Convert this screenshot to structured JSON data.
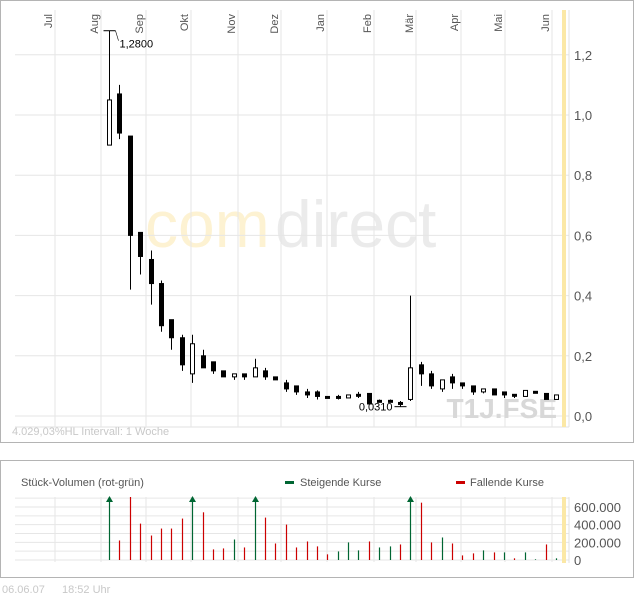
{
  "chart_data": [
    {
      "type": "candlestick",
      "ticker_watermark": "T1J.FSE",
      "logo_watermark": {
        "part1": "com",
        "part2": "direct"
      },
      "x_tick_labels": [
        "Jul",
        "Aug",
        "Sep",
        "Okt",
        "Nov",
        "Dez",
        "Jan",
        "Feb",
        "Mär",
        "Apr",
        "Mai",
        "Jun"
      ],
      "y_tick_labels": [
        "0,0",
        "0,2",
        "0,4",
        "0,6",
        "0,8",
        "1,0",
        "1,2"
      ],
      "y_ticks": [
        0,
        0.2,
        0.4,
        0.6,
        0.8,
        1.0,
        1.2
      ],
      "ylim": [
        0,
        1.3
      ],
      "grid": true,
      "interval": "1 Woche",
      "info_text": "4.029,03%HL Intervall: 1 Woche",
      "annotations": {
        "high_label": "1,2800",
        "high_value": 1.28,
        "low_label": "0,0310",
        "low_value": 0.031
      },
      "candles": [
        {
          "o": 0.9,
          "h": 1.28,
          "l": 0.9,
          "c": 1.05
        },
        {
          "o": 1.07,
          "h": 1.1,
          "l": 0.92,
          "c": 0.94
        },
        {
          "o": 0.93,
          "h": 0.93,
          "l": 0.42,
          "c": 0.6
        },
        {
          "o": 0.61,
          "h": 0.61,
          "l": 0.47,
          "c": 0.53
        },
        {
          "o": 0.52,
          "h": 0.55,
          "l": 0.37,
          "c": 0.44
        },
        {
          "o": 0.44,
          "h": 0.45,
          "l": 0.28,
          "c": 0.3
        },
        {
          "o": 0.32,
          "h": 0.32,
          "l": 0.22,
          "c": 0.26
        },
        {
          "o": 0.26,
          "h": 0.27,
          "l": 0.15,
          "c": 0.17
        },
        {
          "o": 0.14,
          "h": 0.27,
          "l": 0.11,
          "c": 0.24
        },
        {
          "o": 0.2,
          "h": 0.22,
          "l": 0.16,
          "c": 0.16
        },
        {
          "o": 0.18,
          "h": 0.18,
          "l": 0.14,
          "c": 0.15
        },
        {
          "o": 0.15,
          "h": 0.15,
          "l": 0.13,
          "c": 0.13
        },
        {
          "o": 0.13,
          "h": 0.14,
          "l": 0.12,
          "c": 0.14
        },
        {
          "o": 0.14,
          "h": 0.14,
          "l": 0.12,
          "c": 0.13
        },
        {
          "o": 0.13,
          "h": 0.19,
          "l": 0.13,
          "c": 0.16
        },
        {
          "o": 0.15,
          "h": 0.16,
          "l": 0.12,
          "c": 0.13
        },
        {
          "o": 0.13,
          "h": 0.13,
          "l": 0.12,
          "c": 0.12
        },
        {
          "o": 0.11,
          "h": 0.12,
          "l": 0.08,
          "c": 0.09
        },
        {
          "o": 0.1,
          "h": 0.1,
          "l": 0.07,
          "c": 0.08
        },
        {
          "o": 0.08,
          "h": 0.09,
          "l": 0.06,
          "c": 0.07
        },
        {
          "o": 0.08,
          "h": 0.085,
          "l": 0.055,
          "c": 0.065
        },
        {
          "o": 0.065,
          "h": 0.065,
          "l": 0.06,
          "c": 0.06
        },
        {
          "o": 0.065,
          "h": 0.07,
          "l": 0.055,
          "c": 0.06
        },
        {
          "o": 0.06,
          "h": 0.07,
          "l": 0.06,
          "c": 0.07
        },
        {
          "o": 0.072,
          "h": 0.08,
          "l": 0.06,
          "c": 0.068
        },
        {
          "o": 0.075,
          "h": 0.075,
          "l": 0.04,
          "c": 0.04
        },
        {
          "o": 0.052,
          "h": 0.055,
          "l": 0.045,
          "c": 0.05
        },
        {
          "o": 0.052,
          "h": 0.055,
          "l": 0.045,
          "c": 0.05
        },
        {
          "o": 0.045,
          "h": 0.05,
          "l": 0.031,
          "c": 0.04
        },
        {
          "o": 0.055,
          "h": 0.4,
          "l": 0.05,
          "c": 0.16
        },
        {
          "o": 0.17,
          "h": 0.18,
          "l": 0.1,
          "c": 0.14
        },
        {
          "o": 0.14,
          "h": 0.15,
          "l": 0.09,
          "c": 0.1
        },
        {
          "o": 0.09,
          "h": 0.12,
          "l": 0.08,
          "c": 0.12
        },
        {
          "o": 0.13,
          "h": 0.14,
          "l": 0.09,
          "c": 0.11
        },
        {
          "o": 0.11,
          "h": 0.11,
          "l": 0.09,
          "c": 0.1
        },
        {
          "o": 0.1,
          "h": 0.1,
          "l": 0.07,
          "c": 0.08
        },
        {
          "o": 0.08,
          "h": 0.09,
          "l": 0.075,
          "c": 0.09
        },
        {
          "o": 0.09,
          "h": 0.09,
          "l": 0.07,
          "c": 0.07
        },
        {
          "o": 0.08,
          "h": 0.08,
          "l": 0.06,
          "c": 0.07
        },
        {
          "o": 0.072,
          "h": 0.072,
          "l": 0.06,
          "c": 0.068
        },
        {
          "o": 0.065,
          "h": 0.085,
          "l": 0.065,
          "c": 0.085
        },
        {
          "o": 0.082,
          "h": 0.082,
          "l": 0.078,
          "c": 0.08
        },
        {
          "o": 0.075,
          "h": 0.075,
          "l": 0.055,
          "c": 0.055
        },
        {
          "o": 0.055,
          "h": 0.07,
          "l": 0.055,
          "c": 0.07
        }
      ]
    },
    {
      "type": "bar",
      "title": "Stück-Volumen (rot-grün)",
      "legend": [
        {
          "name": "Steigende Kurse",
          "color": "#006633"
        },
        {
          "name": "Fallende Kurse",
          "color": "#cc0000"
        }
      ],
      "legend_placement": "top-right",
      "y_tick_labels": [
        "0",
        "200.000",
        "400.000",
        "600.000"
      ],
      "y_ticks": [
        0,
        200000,
        400000,
        600000
      ],
      "ylim": [
        0,
        700000
      ],
      "grid": true,
      "bars": [
        {
          "v": 900000,
          "up": true,
          "clipped": true
        },
        {
          "v": 221000,
          "up": false
        },
        {
          "v": 720000,
          "up": false
        },
        {
          "v": 412000,
          "up": false
        },
        {
          "v": 277000,
          "up": false
        },
        {
          "v": 356000,
          "up": false
        },
        {
          "v": 356000,
          "up": false
        },
        {
          "v": 469000,
          "up": false
        },
        {
          "v": 900000,
          "up": true,
          "clipped": true
        },
        {
          "v": 540000,
          "up": false
        },
        {
          "v": 120000,
          "up": false
        },
        {
          "v": 131000,
          "up": false
        },
        {
          "v": 232000,
          "up": true
        },
        {
          "v": 142000,
          "up": false
        },
        {
          "v": 900000,
          "up": true,
          "clipped": true
        },
        {
          "v": 480000,
          "up": false
        },
        {
          "v": 187000,
          "up": false
        },
        {
          "v": 401000,
          "up": false
        },
        {
          "v": 142000,
          "up": false
        },
        {
          "v": 210000,
          "up": false
        },
        {
          "v": 154000,
          "up": false
        },
        {
          "v": 64000,
          "up": false
        },
        {
          "v": 97000,
          "up": true
        },
        {
          "v": 199000,
          "up": true
        },
        {
          "v": 109000,
          "up": true
        },
        {
          "v": 210000,
          "up": false
        },
        {
          "v": 142000,
          "up": true
        },
        {
          "v": 154000,
          "up": true
        },
        {
          "v": 176000,
          "up": false
        },
        {
          "v": 900000,
          "up": true,
          "clipped": true
        },
        {
          "v": 649000,
          "up": false
        },
        {
          "v": 199000,
          "up": false
        },
        {
          "v": 255000,
          "up": true
        },
        {
          "v": 187000,
          "up": false
        },
        {
          "v": 52000,
          "up": false
        },
        {
          "v": 75000,
          "up": false
        },
        {
          "v": 109000,
          "up": true
        },
        {
          "v": 86000,
          "up": false
        },
        {
          "v": 86000,
          "up": true
        },
        {
          "v": 19000,
          "up": false
        },
        {
          "v": 86000,
          "up": true
        },
        {
          "v": 8000,
          "up": true
        },
        {
          "v": 176000,
          "up": false
        },
        {
          "v": 19000,
          "up": true
        }
      ]
    }
  ],
  "footer": {
    "date": "06.06.07",
    "time": "18:52 Uhr"
  },
  "colors": {
    "up": "#006633",
    "down": "#cc0000",
    "grid": "#e6e6e6",
    "current_marker": "#fbe8a6",
    "axis_text": "#555555"
  }
}
